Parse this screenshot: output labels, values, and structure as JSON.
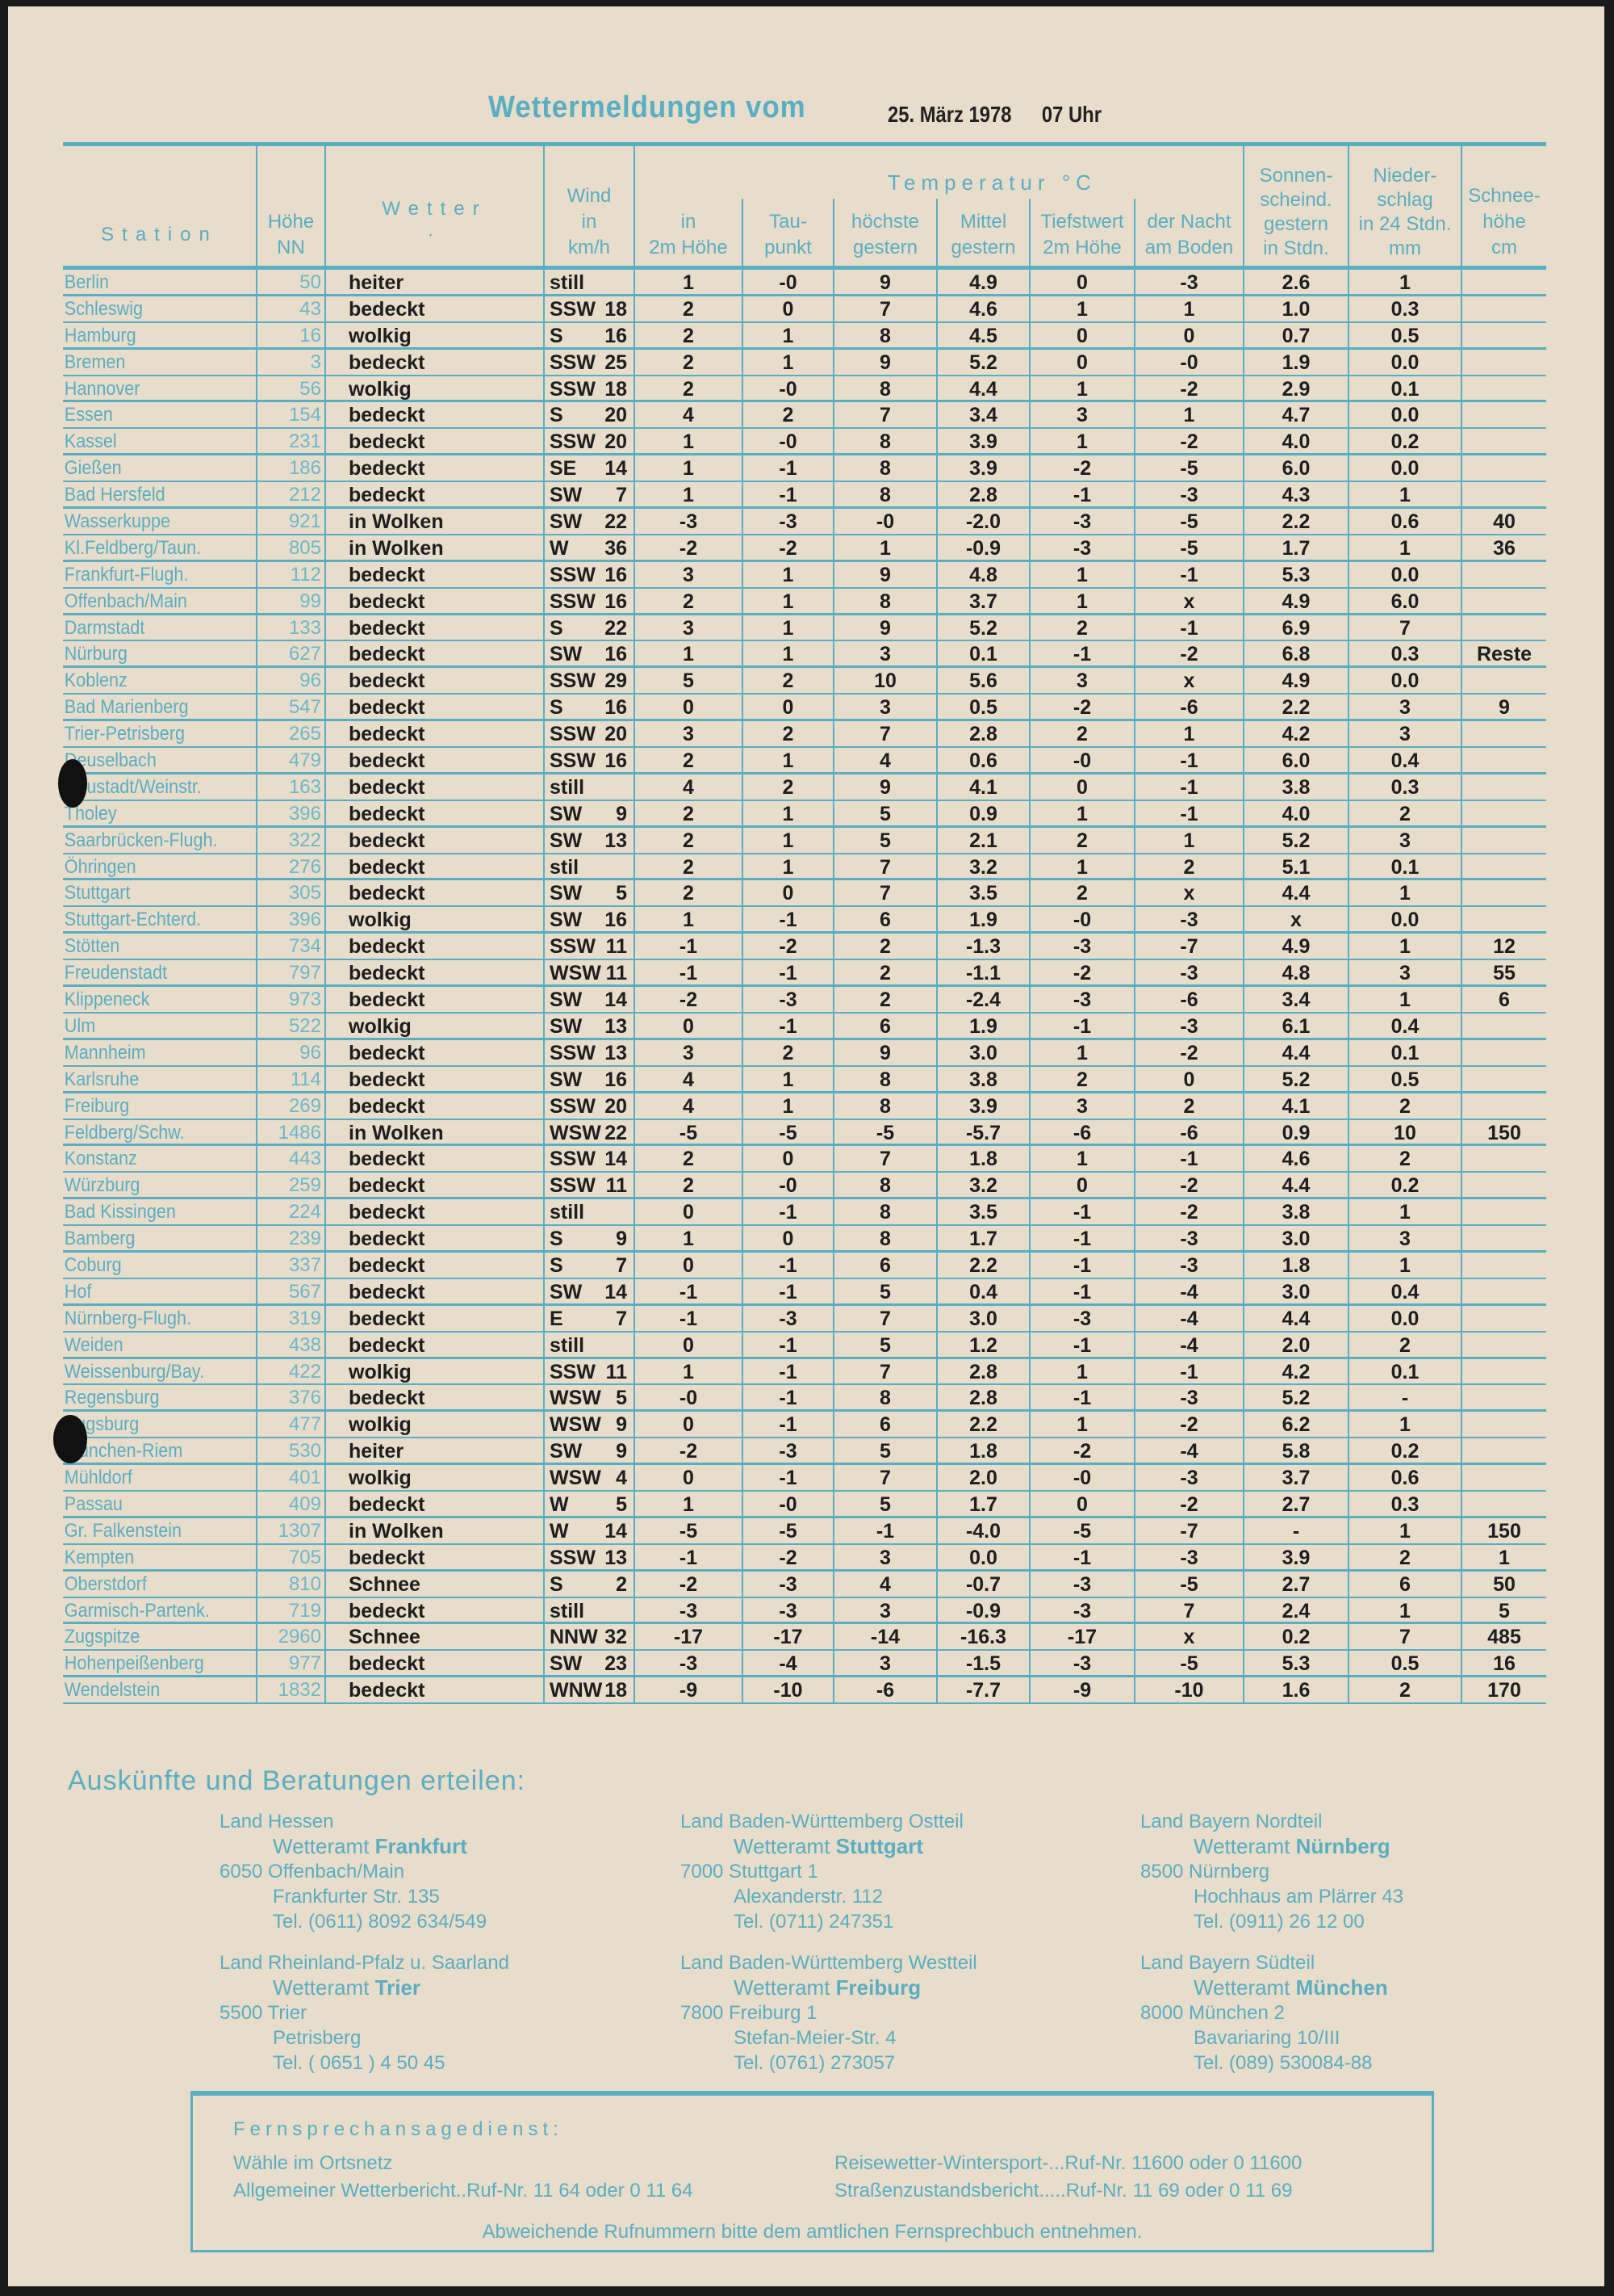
{
  "header": {
    "title": "Wettermeldungen vom",
    "date": "25. März 1978",
    "time": "07 Uhr"
  },
  "table": {
    "temperature_group": "Temperatur °C",
    "columns": [
      {
        "lines": [
          "Station"
        ]
      },
      {
        "lines": [
          "Höhe",
          "NN"
        ]
      },
      {
        "lines": [
          "Wetter",
          "·"
        ]
      },
      {
        "lines": [
          "Wind",
          "in",
          "km/h"
        ]
      },
      {
        "lines": [
          "in",
          "2m Höhe"
        ]
      },
      {
        "lines": [
          "Tau-",
          "punkt"
        ]
      },
      {
        "lines": [
          "höchste",
          "gestern"
        ]
      },
      {
        "lines": [
          "Mittel",
          "gestern"
        ]
      },
      {
        "lines": [
          "Tiefstwert",
          "2m Höhe"
        ]
      },
      {
        "lines": [
          "der Nacht",
          "am Boden"
        ]
      },
      {
        "lines": [
          "Sonnen-",
          "scheind.",
          "gestern",
          "in Stdn."
        ]
      },
      {
        "lines": [
          "Nieder-",
          "schlag",
          "in 24 Stdn.",
          "mm"
        ]
      },
      {
        "lines": [
          "Schnee-",
          "höhe",
          "cm"
        ]
      }
    ],
    "rows": [
      [
        "Berlin",
        "50",
        "heiter",
        "still",
        "",
        "1",
        "-0",
        "9",
        "4.9",
        "0",
        "-3",
        "2.6",
        "1",
        ""
      ],
      [
        "Schleswig",
        "43",
        "bedeckt",
        "SSW",
        "18",
        "2",
        "0",
        "7",
        "4.6",
        "1",
        "1",
        "1.0",
        "0.3",
        ""
      ],
      [
        "Hamburg",
        "16",
        "wolkig",
        "S",
        "16",
        "2",
        "1",
        "8",
        "4.5",
        "0",
        "0",
        "0.7",
        "0.5",
        ""
      ],
      [
        "Bremen",
        "3",
        "bedeckt",
        "SSW",
        "25",
        "2",
        "1",
        "9",
        "5.2",
        "0",
        "-0",
        "1.9",
        "0.0",
        ""
      ],
      [
        "Hannover",
        "56",
        "wolkig",
        "SSW",
        "18",
        "2",
        "-0",
        "8",
        "4.4",
        "1",
        "-2",
        "2.9",
        "0.1",
        ""
      ],
      [
        "Essen",
        "154",
        "bedeckt",
        "S",
        "20",
        "4",
        "2",
        "7",
        "3.4",
        "3",
        "1",
        "4.7",
        "0.0",
        ""
      ],
      [
        "Kassel",
        "231",
        "bedeckt",
        "SSW",
        "20",
        "1",
        "-0",
        "8",
        "3.9",
        "1",
        "-2",
        "4.0",
        "0.2",
        ""
      ],
      [
        "Gießen",
        "186",
        "bedeckt",
        "SE",
        "14",
        "1",
        "-1",
        "8",
        "3.9",
        "-2",
        "-5",
        "6.0",
        "0.0",
        ""
      ],
      [
        "Bad Hersfeld",
        "212",
        "bedeckt",
        "SW",
        "7",
        "1",
        "-1",
        "8",
        "2.8",
        "-1",
        "-3",
        "4.3",
        "1",
        ""
      ],
      [
        "Wasserkuppe",
        "921",
        "in Wolken",
        "SW",
        "22",
        "-3",
        "-3",
        "-0",
        "-2.0",
        "-3",
        "-5",
        "2.2",
        "0.6",
        "40"
      ],
      [
        "Kl.Feldberg/Taun.",
        "805",
        "in Wolken",
        "W",
        "36",
        "-2",
        "-2",
        "1",
        "-0.9",
        "-3",
        "-5",
        "1.7",
        "1",
        "36"
      ],
      [
        "Frankfurt-Flugh.",
        "112",
        "bedeckt",
        "SSW",
        "16",
        "3",
        "1",
        "9",
        "4.8",
        "1",
        "-1",
        "5.3",
        "0.0",
        ""
      ],
      [
        "Offenbach/Main",
        "99",
        "bedeckt",
        "SSW",
        "16",
        "2",
        "1",
        "8",
        "3.7",
        "1",
        "x",
        "4.9",
        "6.0",
        ""
      ],
      [
        "Darmstadt",
        "133",
        "bedeckt",
        "S",
        "22",
        "3",
        "1",
        "9",
        "5.2",
        "2",
        "-1",
        "6.9",
        "7",
        ""
      ],
      [
        "Nürburg",
        "627",
        "bedeckt",
        "SW",
        "16",
        "1",
        "1",
        "3",
        "0.1",
        "-1",
        "-2",
        "6.8",
        "0.3",
        "Reste"
      ],
      [
        "Koblenz",
        "96",
        "bedeckt",
        "SSW",
        "29",
        "5",
        "2",
        "10",
        "5.6",
        "3",
        "x",
        "4.9",
        "0.0",
        ""
      ],
      [
        "Bad Marienberg",
        "547",
        "bedeckt",
        "S",
        "16",
        "0",
        "0",
        "3",
        "0.5",
        "-2",
        "-6",
        "2.2",
        "3",
        "9"
      ],
      [
        "Trier-Petrisberg",
        "265",
        "bedeckt",
        "SSW",
        "20",
        "3",
        "2",
        "7",
        "2.8",
        "2",
        "1",
        "4.2",
        "3",
        ""
      ],
      [
        "Deuselbach",
        "479",
        "bedeckt",
        "SSW",
        "16",
        "2",
        "1",
        "4",
        "0.6",
        "-0",
        "-1",
        "6.0",
        "0.4",
        ""
      ],
      [
        "Neustadt/Weinstr.",
        "163",
        "bedeckt",
        "still",
        "",
        "4",
        "2",
        "9",
        "4.1",
        "0",
        "-1",
        "3.8",
        "0.3",
        ""
      ],
      [
        "Tholey",
        "396",
        "bedeckt",
        "SW",
        "9",
        "2",
        "1",
        "5",
        "0.9",
        "1",
        "-1",
        "4.0",
        "2",
        ""
      ],
      [
        "Saarbrücken-Flugh.",
        "322",
        "bedeckt",
        "SW",
        "13",
        "2",
        "1",
        "5",
        "2.1",
        "2",
        "1",
        "5.2",
        "3",
        ""
      ],
      [
        "Öhringen",
        "276",
        "bedeckt",
        "stil",
        "",
        "2",
        "1",
        "7",
        "3.2",
        "1",
        "2",
        "5.1",
        "0.1",
        ""
      ],
      [
        "Stuttgart",
        "305",
        "bedeckt",
        "SW",
        "5",
        "2",
        "0",
        "7",
        "3.5",
        "2",
        "x",
        "4.4",
        "1",
        ""
      ],
      [
        "Stuttgart-Echterd.",
        "396",
        "wolkig",
        "SW",
        "16",
        "1",
        "-1",
        "6",
        "1.9",
        "-0",
        "-3",
        "x",
        "0.0",
        ""
      ],
      [
        "Stötten",
        "734",
        "bedeckt",
        "SSW",
        "11",
        "-1",
        "-2",
        "2",
        "-1.3",
        "-3",
        "-7",
        "4.9",
        "1",
        "12"
      ],
      [
        "Freudenstadt",
        "797",
        "bedeckt",
        "WSW",
        "11",
        "-1",
        "-1",
        "2",
        "-1.1",
        "-2",
        "-3",
        "4.8",
        "3",
        "55"
      ],
      [
        "Klippeneck",
        "973",
        "bedeckt",
        "SW",
        "14",
        "-2",
        "-3",
        "2",
        "-2.4",
        "-3",
        "-6",
        "3.4",
        "1",
        "6"
      ],
      [
        "Ulm",
        "522",
        "wolkig",
        "SW",
        "13",
        "0",
        "-1",
        "6",
        "1.9",
        "-1",
        "-3",
        "6.1",
        "0.4",
        ""
      ],
      [
        "Mannheim",
        "96",
        "bedeckt",
        "SSW",
        "13",
        "3",
        "2",
        "9",
        "3.0",
        "1",
        "-2",
        "4.4",
        "0.1",
        ""
      ],
      [
        "Karlsruhe",
        "114",
        "bedeckt",
        "SW",
        "16",
        "4",
        "1",
        "8",
        "3.8",
        "2",
        "0",
        "5.2",
        "0.5",
        ""
      ],
      [
        "Freiburg",
        "269",
        "bedeckt",
        "SSW",
        "20",
        "4",
        "1",
        "8",
        "3.9",
        "3",
        "2",
        "4.1",
        "2",
        ""
      ],
      [
        "Feldberg/Schw.",
        "1486",
        "in Wolken",
        "WSW",
        "22",
        "-5",
        "-5",
        "-5",
        "-5.7",
        "-6",
        "-6",
        "0.9",
        "10",
        "150"
      ],
      [
        "Konstanz",
        "443",
        "bedeckt",
        "SSW",
        "14",
        "2",
        "0",
        "7",
        "1.8",
        "1",
        "-1",
        "4.6",
        "2",
        ""
      ],
      [
        "Würzburg",
        "259",
        "bedeckt",
        "SSW",
        "11",
        "2",
        "-0",
        "8",
        "3.2",
        "0",
        "-2",
        "4.4",
        "0.2",
        ""
      ],
      [
        "Bad Kissingen",
        "224",
        "bedeckt",
        "still",
        "",
        "0",
        "-1",
        "8",
        "3.5",
        "-1",
        "-2",
        "3.8",
        "1",
        ""
      ],
      [
        "Bamberg",
        "239",
        "bedeckt",
        "S",
        "9",
        "1",
        "0",
        "8",
        "1.7",
        "-1",
        "-3",
        "3.0",
        "3",
        ""
      ],
      [
        "Coburg",
        "337",
        "bedeckt",
        "S",
        "7",
        "0",
        "-1",
        "6",
        "2.2",
        "-1",
        "-3",
        "1.8",
        "1",
        ""
      ],
      [
        "Hof",
        "567",
        "bedeckt",
        "SW",
        "14",
        "-1",
        "-1",
        "5",
        "0.4",
        "-1",
        "-4",
        "3.0",
        "0.4",
        ""
      ],
      [
        "Nürnberg-Flugh.",
        "319",
        "bedeckt",
        "E",
        "7",
        "-1",
        "-3",
        "7",
        "3.0",
        "-3",
        "-4",
        "4.4",
        "0.0",
        ""
      ],
      [
        "Weiden",
        "438",
        "bedeckt",
        "still",
        "",
        "0",
        "-1",
        "5",
        "1.2",
        "-1",
        "-4",
        "2.0",
        "2",
        ""
      ],
      [
        "Weissenburg/Bay.",
        "422",
        "wolkig",
        "SSW",
        "11",
        "1",
        "-1",
        "7",
        "2.8",
        "1",
        "-1",
        "4.2",
        "0.1",
        ""
      ],
      [
        "Regensburg",
        "376",
        "bedeckt",
        "WSW",
        "5",
        "-0",
        "-1",
        "8",
        "2.8",
        "-1",
        "-3",
        "5.2",
        "-",
        ""
      ],
      [
        "Augsburg",
        "477",
        "wolkig",
        "WSW",
        "9",
        "0",
        "-1",
        "6",
        "2.2",
        "1",
        "-2",
        "6.2",
        "1",
        ""
      ],
      [
        "München-Riem",
        "530",
        "heiter",
        "SW",
        "9",
        "-2",
        "-3",
        "5",
        "1.8",
        "-2",
        "-4",
        "5.8",
        "0.2",
        ""
      ],
      [
        "Mühldorf",
        "401",
        "wolkig",
        "WSW",
        "4",
        "0",
        "-1",
        "7",
        "2.0",
        "-0",
        "-3",
        "3.7",
        "0.6",
        ""
      ],
      [
        "Passau",
        "409",
        "bedeckt",
        "W",
        "5",
        "1",
        "-0",
        "5",
        "1.7",
        "0",
        "-2",
        "2.7",
        "0.3",
        ""
      ],
      [
        "Gr. Falkenstein",
        "1307",
        "in Wolken",
        "W",
        "14",
        "-5",
        "-5",
        "-1",
        "-4.0",
        "-5",
        "-7",
        "-",
        "1",
        "150"
      ],
      [
        "Kempten",
        "705",
        "bedeckt",
        "SSW",
        "13",
        "-1",
        "-2",
        "3",
        "0.0",
        "-1",
        "-3",
        "3.9",
        "2",
        "1"
      ],
      [
        "Oberstdorf",
        "810",
        "Schnee",
        "S",
        "2",
        "-2",
        "-3",
        "4",
        "-0.7",
        "-3",
        "-5",
        "2.7",
        "6",
        "50"
      ],
      [
        "Garmisch-Partenk.",
        "719",
        "bedeckt",
        "still",
        "",
        "-3",
        "-3",
        "3",
        "-0.9",
        "-3",
        "7",
        "2.4",
        "1",
        "5"
      ],
      [
        "Zugspitze",
        "2960",
        "Schnee",
        "NNW",
        "32",
        "-17",
        "-17",
        "-14",
        "-16.3",
        "-17",
        "x",
        "0.2",
        "7",
        "485"
      ],
      [
        "Hohenpeißenberg",
        "977",
        "bedeckt",
        "SW",
        "23",
        "-3",
        "-4",
        "3",
        "-1.5",
        "-3",
        "-5",
        "5.3",
        "0.5",
        "16"
      ],
      [
        "Wendelstein",
        "1832",
        "bedeckt",
        "WNW",
        "18",
        "-9",
        "-10",
        "-6",
        "-7.7",
        "-9",
        "-10",
        "1.6",
        "2",
        "170"
      ]
    ]
  },
  "contacts": {
    "heading": "Auskünfte und Beratungen erteilen:",
    "office_prefix": "Wetteramt",
    "offices": [
      {
        "region": "Land Hessen",
        "city": "Frankfurt",
        "postal": "6050 Offenbach/Main",
        "street": "Frankfurter Str. 135",
        "tel": "Tel. (0611) 8092 634/549"
      },
      {
        "region": "Land Baden-Württemberg Ostteil",
        "city": "Stuttgart",
        "postal": "7000 Stuttgart 1",
        "street": "Alexanderstr. 112",
        "tel": "Tel. (0711) 247351"
      },
      {
        "region": "Land Bayern Nordteil",
        "city": "Nürnberg",
        "postal": "8500 Nürnberg",
        "street": "Hochhaus am Plärrer 43",
        "tel": "Tel. (0911) 26 12 00"
      },
      {
        "region": "Land Rheinland-Pfalz u. Saarland",
        "city": "Trier",
        "postal": "5500 Trier",
        "street": "Petrisberg",
        "tel": "Tel. ( 0651 ) 4 50 45"
      },
      {
        "region": "Land Baden-Württemberg Westteil",
        "city": "Freiburg",
        "postal": "7800 Freiburg 1",
        "street": "Stefan-Meier-Str. 4",
        "tel": "Tel. (0761) 273057"
      },
      {
        "region": "Land Bayern Südteil",
        "city": "München",
        "postal": "8000 München 2",
        "street": "Bavariaring 10/III",
        "tel": "Tel. (089) 530084-88"
      }
    ]
  },
  "phone_service": {
    "title": "Fernsprechansagedienst:",
    "dial": "Wähle im Ortsnetz",
    "general": "Allgemeiner Wetterbericht..Ruf-Nr. 11 64 oder 0 11 64",
    "travel": "Reisewetter-Wintersport-...Ruf-Nr. 11600 oder 0 11600",
    "roads": "Straßenzustandsbericht.....Ruf-Nr. 11 69 oder 0 11 69",
    "note": "Abweichende Rufnummern bitte dem amtlichen Fernsprechbuch entnehmen."
  },
  "colors": {
    "print_blue": "#5aaec2",
    "print_black": "#1e1e1e",
    "paper": "#e8dccb"
  }
}
